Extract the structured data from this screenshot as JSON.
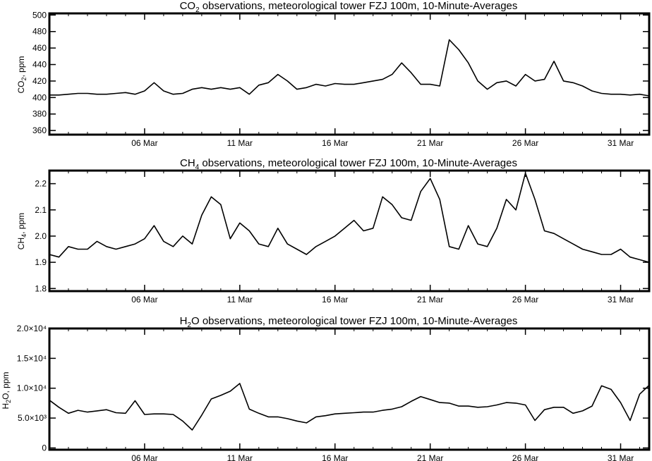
{
  "chart_data": [
    {
      "type": "line",
      "title": "CO2 observations, meteorological tower FZJ 100m, 10-Minute-Averages",
      "title_parts": {
        "pre": "CO",
        "sub": "2",
        "post": " observations, meteorological tower FZJ 100m, 10-Minute-Averages"
      },
      "ylabel": "CO2, ppm",
      "ylabel_parts": {
        "pre": "CO",
        "sub": "2",
        "post": ", ppm"
      },
      "x_ticks": [
        "06 Mar",
        "11 Mar",
        "16 Mar",
        "21 Mar",
        "26 Mar",
        "31 Mar"
      ],
      "x_tick_days": [
        6,
        11,
        16,
        21,
        26,
        31
      ],
      "xlim": [
        1,
        32.5
      ],
      "ylim": [
        355,
        502
      ],
      "y_ticks": [
        360,
        380,
        400,
        420,
        440,
        460,
        480,
        500
      ],
      "y_tick_labels": [
        "360",
        "380",
        "400",
        "420",
        "440",
        "460",
        "480",
        "500"
      ],
      "x": [
        1.0,
        1.5,
        2.0,
        2.5,
        3.0,
        3.5,
        4.0,
        4.5,
        5.0,
        5.5,
        6.0,
        6.5,
        7.0,
        7.5,
        8.0,
        8.5,
        9.0,
        9.5,
        10.0,
        10.5,
        11.0,
        11.5,
        12.0,
        12.5,
        13.0,
        13.5,
        14.0,
        14.5,
        15.0,
        15.5,
        16.0,
        16.5,
        17.0,
        17.5,
        18.0,
        18.5,
        19.0,
        19.5,
        20.0,
        20.5,
        21.0,
        21.5,
        22.0,
        22.5,
        23.0,
        23.5,
        24.0,
        24.5,
        25.0,
        25.5,
        26.0,
        26.5,
        27.0,
        27.5,
        28.0,
        28.5,
        29.0,
        29.5,
        30.0,
        30.5,
        31.0,
        31.5,
        32.0,
        32.5
      ],
      "y": [
        403,
        403,
        404,
        405,
        405,
        404,
        404,
        405,
        406,
        404,
        408,
        418,
        408,
        404,
        405,
        410,
        412,
        410,
        412,
        410,
        412,
        404,
        415,
        418,
        428,
        420,
        410,
        412,
        416,
        414,
        417,
        416,
        416,
        418,
        420,
        422,
        428,
        442,
        430,
        416,
        416,
        414,
        470,
        458,
        442,
        420,
        410,
        418,
        420,
        414,
        428,
        420,
        422,
        444,
        420,
        418,
        414,
        408,
        405,
        404,
        404,
        403,
        404,
        402
      ]
    },
    {
      "type": "line",
      "title": "CH4 observations, meteorological tower FZJ 100m, 10-Minute-Averages",
      "title_parts": {
        "pre": "CH",
        "sub": "4",
        "post": " observations, meteorological tower FZJ 100m, 10-Minute-Averages"
      },
      "ylabel": "CH4, ppm",
      "ylabel_parts": {
        "pre": "CH",
        "sub": "4",
        "post": ", ppm"
      },
      "x_ticks": [
        "06 Mar",
        "11 Mar",
        "16 Mar",
        "21 Mar",
        "26 Mar",
        "31 Mar"
      ],
      "x_tick_days": [
        6,
        11,
        16,
        21,
        26,
        31
      ],
      "xlim": [
        1,
        32.5
      ],
      "ylim": [
        1.79,
        2.25
      ],
      "y_ticks": [
        1.8,
        1.9,
        2.0,
        2.1,
        2.2
      ],
      "y_tick_labels": [
        "1.8",
        "1.9",
        "2.0",
        "2.1",
        "2.2"
      ],
      "x": [
        1.0,
        1.5,
        2.0,
        2.5,
        3.0,
        3.5,
        4.0,
        4.5,
        5.0,
        5.5,
        6.0,
        6.5,
        7.0,
        7.5,
        8.0,
        8.5,
        9.0,
        9.5,
        10.0,
        10.5,
        11.0,
        11.5,
        12.0,
        12.5,
        13.0,
        13.5,
        14.0,
        14.5,
        15.0,
        15.5,
        16.0,
        16.5,
        17.0,
        17.5,
        18.0,
        18.5,
        19.0,
        19.5,
        20.0,
        20.5,
        21.0,
        21.5,
        22.0,
        22.5,
        23.0,
        23.5,
        24.0,
        24.5,
        25.0,
        25.5,
        26.0,
        26.5,
        27.0,
        27.5,
        28.0,
        28.5,
        29.0,
        29.5,
        30.0,
        30.5,
        31.0,
        31.5,
        32.0,
        32.5
      ],
      "y": [
        1.93,
        1.92,
        1.96,
        1.95,
        1.95,
        1.98,
        1.96,
        1.95,
        1.96,
        1.97,
        1.99,
        2.04,
        1.98,
        1.96,
        2.0,
        1.97,
        2.08,
        2.15,
        2.12,
        1.99,
        2.05,
        2.02,
        1.97,
        1.96,
        2.03,
        1.97,
        1.95,
        1.93,
        1.96,
        1.98,
        2.0,
        2.03,
        2.06,
        2.02,
        2.03,
        2.15,
        2.12,
        2.07,
        2.06,
        2.17,
        2.22,
        2.14,
        1.96,
        1.95,
        2.04,
        1.97,
        1.96,
        2.03,
        2.14,
        2.1,
        2.24,
        2.14,
        2.02,
        2.01,
        1.99,
        1.97,
        1.95,
        1.94,
        1.93,
        1.93,
        1.95,
        1.92,
        1.91,
        1.9
      ]
    },
    {
      "type": "line",
      "title": "H2O observations, meteorological tower FZJ 100m, 10-Minute-Averages",
      "title_parts": {
        "pre": "H",
        "sub": "2",
        "post": "O observations, meteorological tower FZJ 100m, 10-Minute-Averages"
      },
      "ylabel": "H2O, ppm",
      "ylabel_parts": {
        "pre": "H",
        "sub": "2",
        "post": "O, ppm"
      },
      "x_ticks": [
        "06 Mar",
        "11 Mar",
        "16 Mar",
        "21 Mar",
        "26 Mar",
        "31 Mar"
      ],
      "x_tick_days": [
        6,
        11,
        16,
        21,
        26,
        31
      ],
      "xlim": [
        1,
        32.5
      ],
      "ylim": [
        -300,
        20000
      ],
      "y_ticks": [
        0,
        5000,
        10000,
        15000,
        20000
      ],
      "y_tick_labels": [
        "0",
        "5.0×10³",
        "1.0×10⁴",
        "1.5×10⁴",
        "2.0×10⁴"
      ],
      "x": [
        1.0,
        1.5,
        2.0,
        2.5,
        3.0,
        3.5,
        4.0,
        4.5,
        5.0,
        5.5,
        6.0,
        6.5,
        7.0,
        7.5,
        8.0,
        8.5,
        9.0,
        9.5,
        10.0,
        10.5,
        11.0,
        11.5,
        12.0,
        12.5,
        13.0,
        13.5,
        14.0,
        14.5,
        15.0,
        15.5,
        16.0,
        16.5,
        17.0,
        17.5,
        18.0,
        18.5,
        19.0,
        19.5,
        20.0,
        20.5,
        21.0,
        21.5,
        22.0,
        22.5,
        23.0,
        23.5,
        24.0,
        24.5,
        25.0,
        25.5,
        26.0,
        26.5,
        27.0,
        27.5,
        28.0,
        28.5,
        29.0,
        29.5,
        30.0,
        30.5,
        31.0,
        31.5,
        32.0,
        32.5
      ],
      "y": [
        8000,
        6800,
        5800,
        6300,
        6000,
        6200,
        6400,
        5900,
        5800,
        7900,
        5600,
        5700,
        5700,
        5600,
        4500,
        3000,
        5500,
        8200,
        8800,
        9500,
        10800,
        6500,
        5800,
        5200,
        5200,
        4900,
        4500,
        4200,
        5200,
        5400,
        5700,
        5800,
        5900,
        6000,
        6000,
        6300,
        6500,
        6900,
        7800,
        8600,
        8100,
        7600,
        7500,
        7000,
        7000,
        6800,
        6900,
        7200,
        7600,
        7500,
        7200,
        4600,
        6400,
        6800,
        6800,
        5800,
        6200,
        7000,
        10400,
        9800,
        7600,
        4600,
        9000,
        10500
      ]
    }
  ]
}
